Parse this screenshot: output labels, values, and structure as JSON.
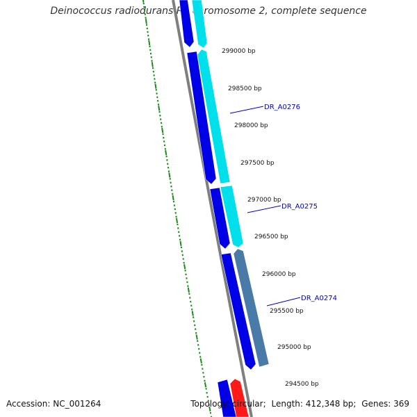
{
  "title": "Deinococcus radiodurans R1 chromosome 2, complete sequence",
  "footer": {
    "accession_label": "Accession:",
    "accession": "NC_001264",
    "topology_label": "Topology:",
    "topology": "circular",
    "length_label": "Length:",
    "length": "412,348 bp",
    "genes_label": "Genes:",
    "genes": "369"
  },
  "colors": {
    "backbone": "#7f7f7f",
    "forward_gene": "#0000e6",
    "forward_gene_light": "#00e0ea",
    "reverse_gene": "#4a7aa8",
    "red_gene": "#ff1a1a",
    "label_line": "#0000cc",
    "tick": "#1a8a1a",
    "text": "#111111"
  },
  "bp_labels": [
    {
      "bp": 299000,
      "text": "299000 bp"
    },
    {
      "bp": 298500,
      "text": "298500 bp"
    },
    {
      "bp": 298000,
      "text": "298000 bp"
    },
    {
      "bp": 297500,
      "text": "297500 bp"
    },
    {
      "bp": 297000,
      "text": "297000 bp"
    },
    {
      "bp": 296500,
      "text": "296500 bp"
    },
    {
      "bp": 296000,
      "text": "296000 bp"
    },
    {
      "bp": 295500,
      "text": "295500 bp"
    },
    {
      "bp": 295000,
      "text": "295000 bp"
    },
    {
      "bp": 294500,
      "text": "294500 bp"
    }
  ],
  "gene_labels": [
    {
      "name": "DR_A0276"
    },
    {
      "name": "DR_A0275"
    },
    {
      "name": "DR_A0274"
    }
  ]
}
